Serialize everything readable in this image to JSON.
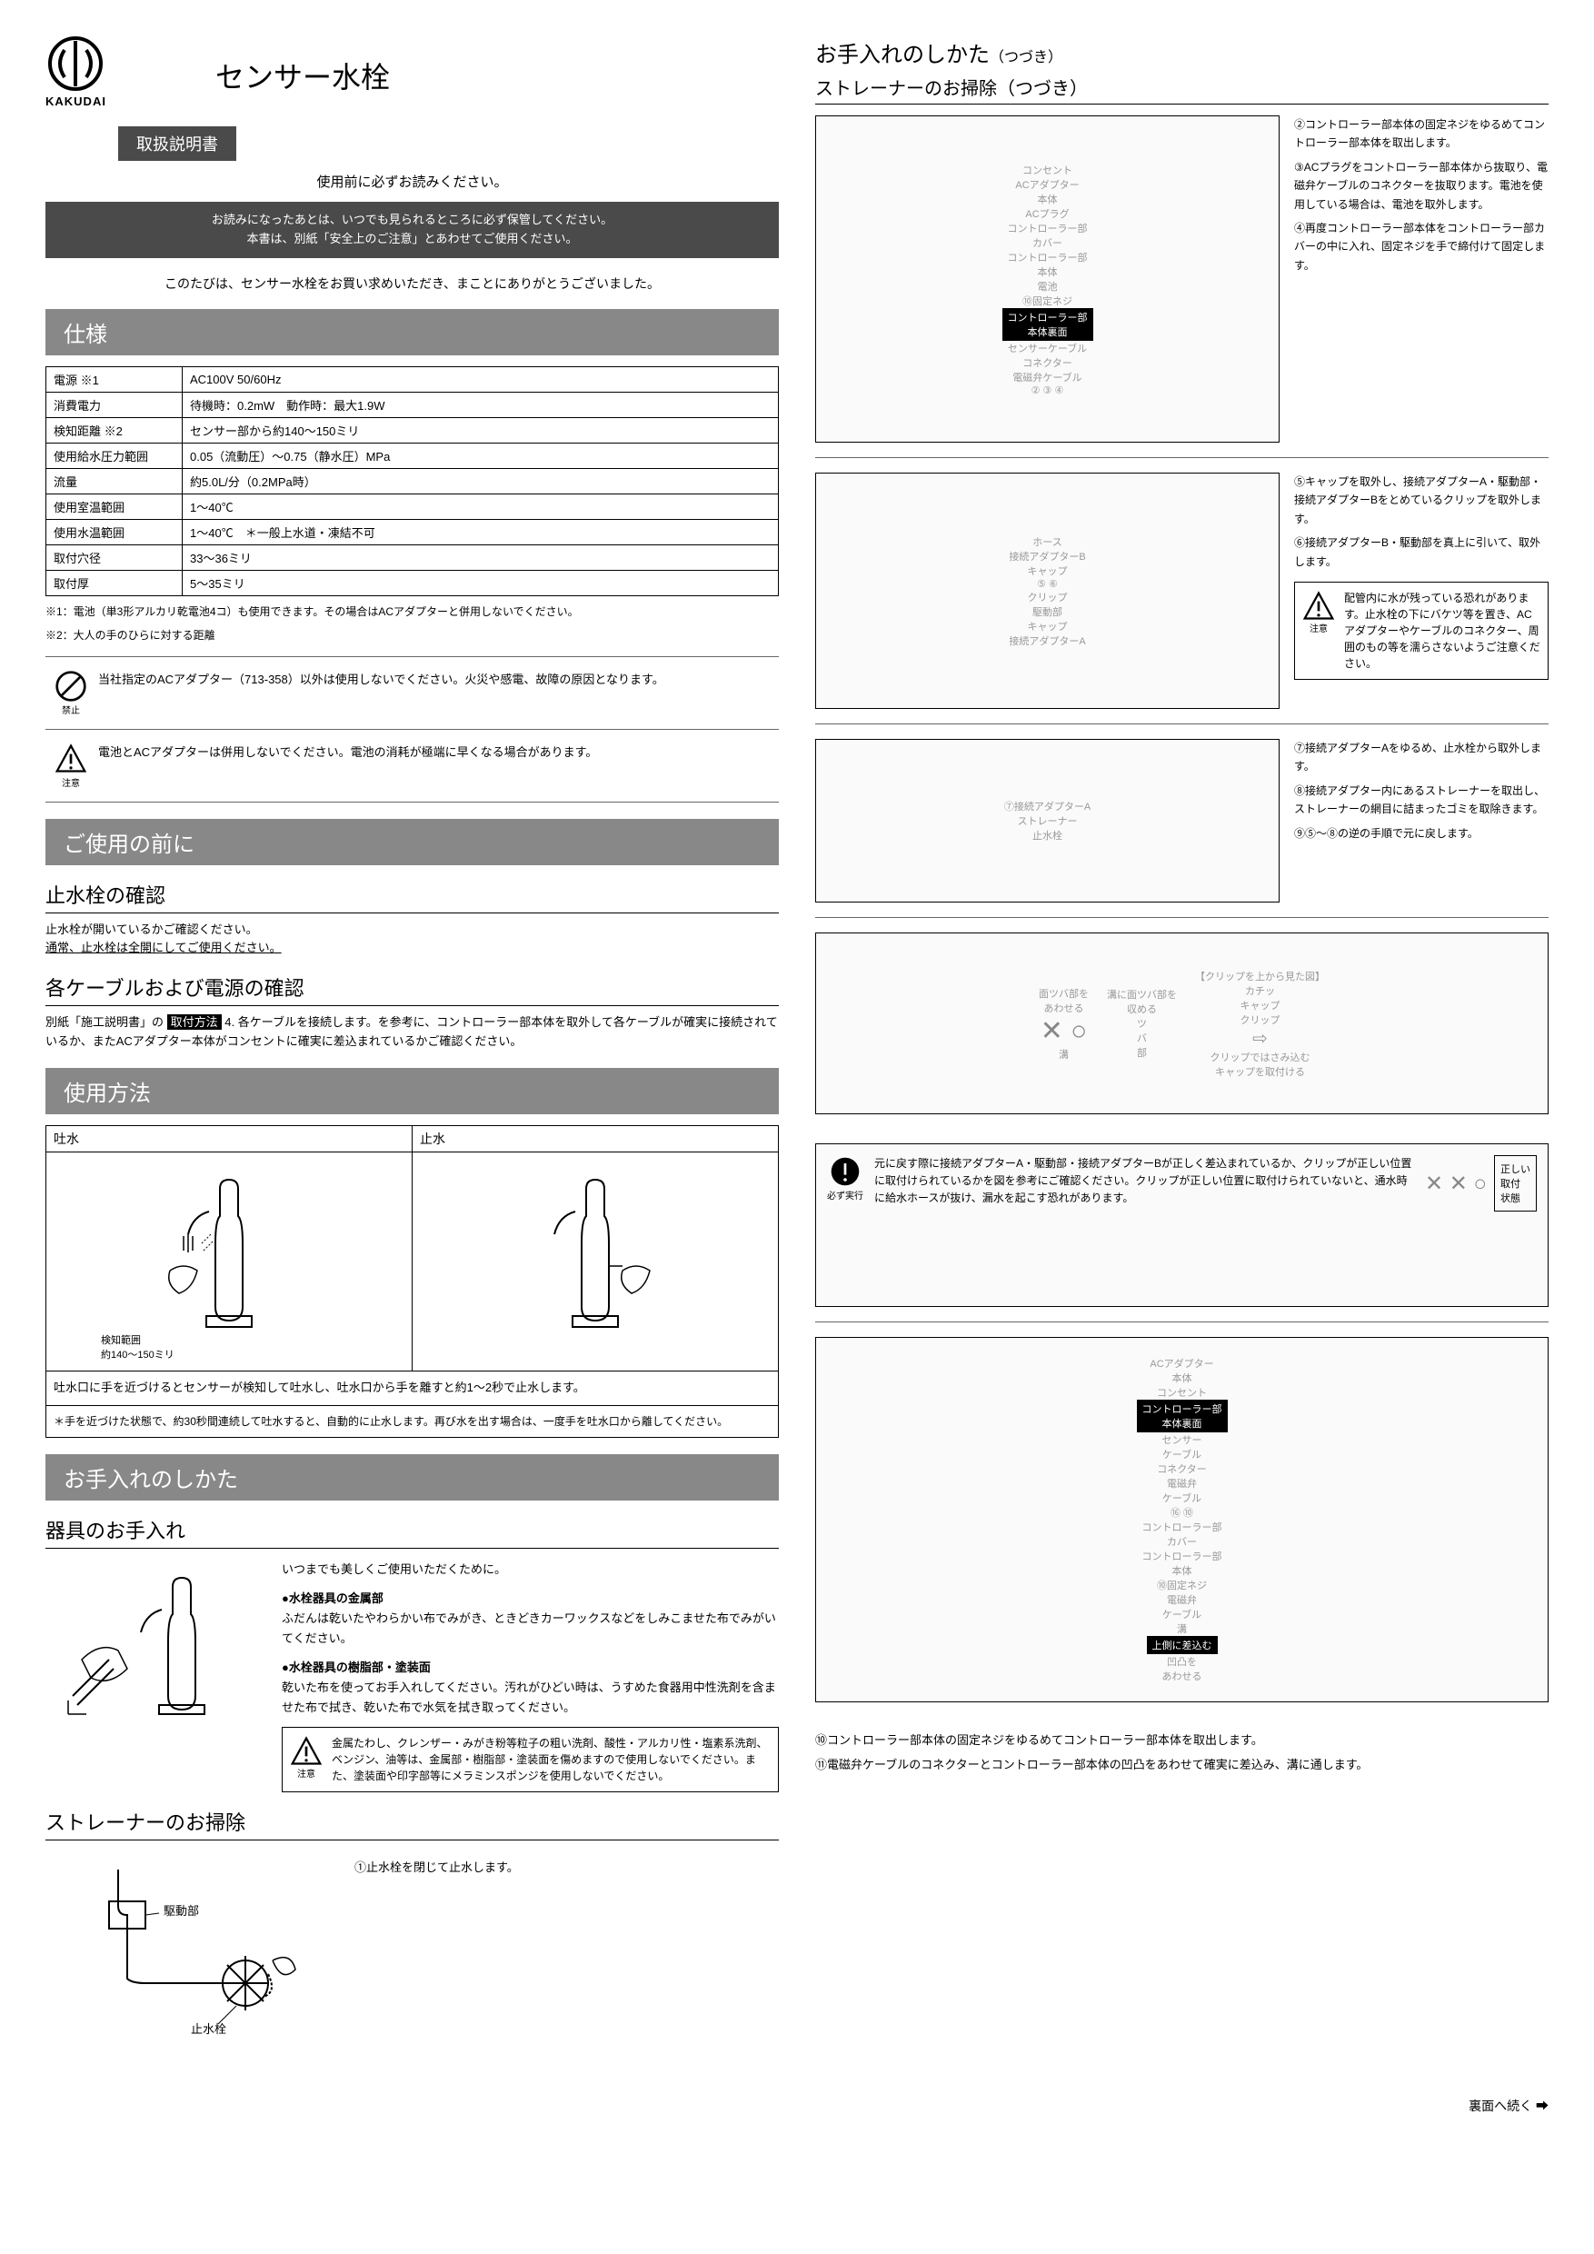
{
  "brand": "KAKUDAI",
  "product_title": "センサー水栓",
  "manual_label": "取扱説明書",
  "read_before": "使用前に必ずお読みください。",
  "keep_notice": "お読みになったあとは、いつでも見られるところに必ず保管してください。\n本書は、別紙「安全上のご注意」とあわせてご使用ください。",
  "thanks_text": "このたびは、センサー水栓をお買い求めいただき、まことにありがとうございました。",
  "spec_header": "仕様",
  "spec_rows": [
    [
      "電源 ※1",
      "AC100V 50/60Hz"
    ],
    [
      "消費電力",
      "待機時：0.2mW　動作時：最大1.9W"
    ],
    [
      "検知距離 ※2",
      "センサー部から約140～150ミリ"
    ],
    [
      "使用給水圧力範囲",
      "0.05（流動圧）～0.75（静水圧）MPa"
    ],
    [
      "流量",
      "約5.0L/分（0.2MPa時）"
    ],
    [
      "使用室温範囲",
      "1～40℃"
    ],
    [
      "使用水温範囲",
      "1～40℃　＊一般上水道・凍結不可"
    ],
    [
      "取付穴径",
      "33～36ミリ"
    ],
    [
      "取付厚",
      "5～35ミリ"
    ]
  ],
  "spec_note1": "※1：電池（単3形アルカリ乾電池4コ）も使用できます。その場合はACアダプターと併用しないでください。",
  "spec_note2": "※2：大人の手のひらに対する距離",
  "prohibit_label": "禁止",
  "prohibit_text": "当社指定のACアダプター（713-358）以外は使用しないでください。火災や感電、故障の原因となります。",
  "caution_label": "注意",
  "caution_text": "電池とACアダプターは併用しないでください。電池の消耗が極端に早くなる場合があります。",
  "before_use_header": "ご使用の前に",
  "stopcock_title": "止水栓の確認",
  "stopcock_text1": "止水栓が開いているかご確認ください。",
  "stopcock_text2": "通常、止水栓は全開にしてご使用ください。",
  "cable_title": "各ケーブルおよび電源の確認",
  "cable_text": "別紙「施工説明書」の",
  "cable_inverse": "取付方法",
  "cable_text2": " 4. 各ケーブルを接続します。を参考に、コントローラー部本体を取外して各ケーブルが確実に接続されているか、またACアダプター本体がコンセントに確実に差込まれているかご確認ください。",
  "usage_header": "使用方法",
  "usage_spout": "吐水",
  "usage_stop": "止水",
  "sensor_range": "検知範囲\n約140～150ミリ",
  "usage_caption": "吐水口に手を近づけるとセンサーが検知して吐水し、吐水口から手を離すと約1～2秒で止水します。",
  "usage_boxnote": "＊手を近づけた状態で、約30秒間連続して吐水すると、自動的に止水します。再び水を出す場合は、一度手を吐水口から離してください。",
  "care_header": "お手入れのしかた",
  "equipment_title": "器具のお手入れ",
  "care_always": "いつまでも美しくご使用いただくために。",
  "care_metal_head": "●水栓器具の金属部",
  "care_metal_text": "ふだんは乾いたやわらかい布でみがき、ときどきカーワックスなどをしみこませた布でみがいてください。",
  "care_resin_head": "●水栓器具の樹脂部・塗装面",
  "care_resin_text": "乾いた布を使ってお手入れしてください。汚れがひどい時は、うすめた食器用中性洗剤を含ませた布で拭き、乾いた布で水気を拭き取ってください。",
  "care_warn": "金属たわし、クレンザー・みがき粉等粒子の粗い洗剤、酸性・アルカリ性・塩素系洗剤、ベンジン、油等は、金属部・樹脂部・塗装面を傷めますので使用しないでください。また、塗装面や印字部等にメラミンスポンジを使用しないでください。",
  "strainer_title": "ストレーナーのお掃除",
  "strainer_step1": "①止水栓を閉じて止水します。",
  "strainer_labels": {
    "drive": "駆動部",
    "stopcock": "止水栓"
  },
  "right_main_title": "お手入れのしかた",
  "right_main_sub": "（つづき）",
  "right_sub_title": "ストレーナーのお掃除（つづき）",
  "d1_labels": {
    "outlet": "コンセント",
    "ac_body": "ACアダプター\n本体",
    "ac_plug": "ACプラグ",
    "ctrl_cover": "コントローラー部\nカバー",
    "ctrl_body": "コントローラー部\n本体",
    "battery": "電池",
    "screw": "⑩固定ネジ",
    "back": "コントローラー部\n本体裏面",
    "sensor_cable": "センサーケーブル",
    "connector": "コネクター",
    "valve_cable": "電磁弁ケーブル"
  },
  "d1_steps": [
    "②コントローラー部本体の固定ネジをゆるめてコントローラー部本体を取出します。",
    "③ACプラグをコントローラー部本体から抜取り、電磁弁ケーブルのコネクターを抜取ります。電池を使用している場合は、電池を取外します。",
    "④再度コントローラー部本体をコントローラー部カバーの中に入れ、固定ネジを手で締付けて固定します。"
  ],
  "d2_labels": {
    "hose": "ホース",
    "adapterB": "接続アダプターB",
    "cap": "キャップ",
    "clip": "クリップ",
    "drive": "駆動部",
    "adapterA": "接続アダプターA"
  },
  "d2_steps": [
    "⑤キャップを取外し、接続アダプターA・駆動部・接続アダプターBをとめているクリップを取外します。",
    "⑥接続アダプターB・駆動部を真上に引いて、取外します。"
  ],
  "d2_warn": "配管内に水が残っている恐れがあります。止水栓の下にバケツ等を置き、ACアダプターやケーブルのコネクター、周囲のもの等を濡らさないようご注意ください。",
  "d3_labels": {
    "adapterA": "⑦接続アダプターA",
    "strainer": "ストレーナー",
    "stopcock": "止水栓"
  },
  "d3_steps": [
    "⑦接続アダプターAをゆるめ、止水栓から取外します。",
    "⑧接続アダプター内にあるストレーナーを取出し、ストレーナーの網目に詰まったゴミを取除きます。",
    "⑨⑤～⑧の逆の手順で元に戻します。"
  ],
  "d4_labels": {
    "flange": "面ツバ部を\nあわせる",
    "groove_store": "溝に面ツバ部を\n収める",
    "tsuba": "ツ\nバ\n部",
    "groove": "溝",
    "top_view": "【クリップを上から見た図】",
    "snap": "カチッ",
    "cap": "キャップ",
    "clip": "クリップ",
    "clip_pinch": "クリップではさみ込む",
    "cap_attach": "キャップを取付ける"
  },
  "d5_icon": "必ず実行",
  "d5_text": "元に戻す際に接続アダプターA・駆動部・接続アダプターBが正しく差込まれているか、クリップが正しい位置に取付けられているかを図を参考にご確認ください。クリップが正しい位置に取付けられていないと、通水時に給水ホースが抜け、漏水を起こす恐れがあります。",
  "d5_correct": "正しい\n取付\n状態",
  "d6_labels": {
    "ac_body": "ACアダプター\n本体",
    "outlet": "コンセント",
    "back": "コントローラー部\n本体裏面",
    "sensor_cable": "センサー\nケーブル",
    "connector": "コネクター",
    "valve_cable": "電磁弁\nケーブル",
    "ctrl_cover": "コントローラー部\nカバー",
    "ctrl_body": "コントローラー部\n本体",
    "screw": "⑩固定ネジ",
    "valve": "電磁弁\nケーブル",
    "groove": "溝",
    "insert_top": "上側に差込む",
    "align": "凹凸を\nあわせる"
  },
  "d6_steps": [
    "⑩コントローラー部本体の固定ネジをゆるめてコントローラー部本体を取出します。",
    "⑪電磁弁ケーブルのコネクターとコントローラー部本体の凹凸をあわせて確実に差込み、溝に通します。"
  ],
  "continue_text": "裏面へ続く ➡"
}
